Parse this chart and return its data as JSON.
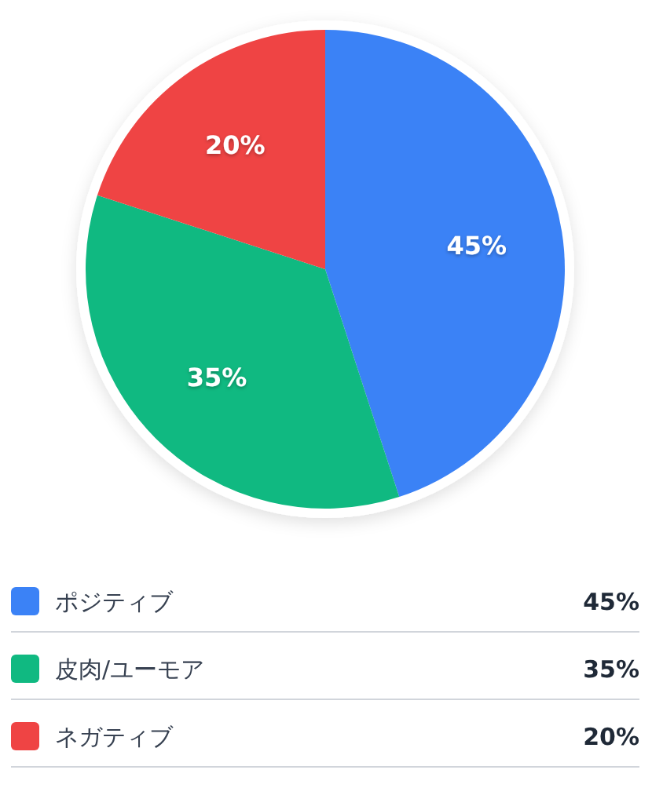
{
  "chart_data": {
    "type": "pie",
    "categories": [
      "ポジティブ",
      "皮肉/ユーモア",
      "ネガティブ"
    ],
    "values": [
      45,
      35,
      20
    ],
    "colors": [
      "#3b82f6",
      "#10b981",
      "#ef4444"
    ],
    "value_labels": [
      "45%",
      "35%",
      "20%"
    ],
    "legend": "bottom"
  }
}
